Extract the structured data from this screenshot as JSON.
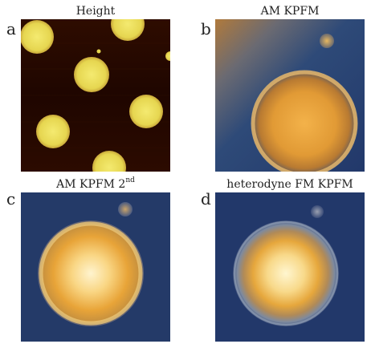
{
  "panels": [
    {
      "letter": "a",
      "title": "Height",
      "title_sup": ""
    },
    {
      "letter": "b",
      "title": "AM KPFM",
      "title_sup": ""
    },
    {
      "letter": "c",
      "title": "AM KPFM 2",
      "title_sup": "nd"
    },
    {
      "letter": "d",
      "title": "heterodyne FM KPFM",
      "title_sup": ""
    }
  ],
  "colors": {
    "height_background": "#2a0a00",
    "height_particle": "#e9dc5a",
    "kpfm_background": "#233a66",
    "kpfm_center": "#fff6d0",
    "kpfm_mid": "#e6a030",
    "kpfm_rim": "#f4d27a"
  }
}
